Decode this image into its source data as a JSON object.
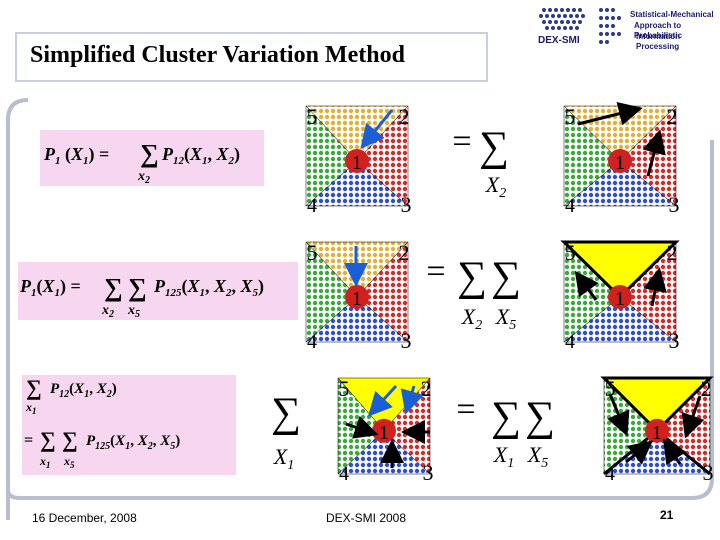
{
  "slide": {
    "title": "Simplified Cluster Variation Method",
    "footer_date": "16 December, 2008",
    "footer_center": "DEX-SMI 2008",
    "page_number": "21"
  },
  "logos": {
    "left_text": "DEX-SMI",
    "right_lines": [
      "Statistical-Mechanical",
      "Approach to Probabilistic",
      "Information Processing"
    ]
  },
  "colors": {
    "frame": "#b8bdd0",
    "pink_box": "#f7d7ef",
    "node_red": "#d02020",
    "highlight_yellow": "#ffff00",
    "arrow_blue": "#1a5fd6"
  },
  "formulas": [
    {
      "lhs": "P",
      "lhs_sub": "1",
      "args": "(X",
      "args_sub": "1",
      "rhs": ") = ",
      "sum_subs": [
        "X2"
      ],
      "term": "P",
      "term_sub": "12",
      "term_args": "(X1, X2)"
    },
    {
      "lhs": "P",
      "lhs_sub": "1",
      "args": "(X",
      "args_sub": "1",
      "rhs": ") = ",
      "sum_subs": [
        "X2",
        "X5"
      ],
      "term": "P",
      "term_sub": "125",
      "term_args": "(X1, X2, X5)"
    },
    {
      "line1_sum": "x1",
      "line1_term": "P12(X1, X2)",
      "line2_sums": [
        "x1",
        "x5"
      ],
      "line2_term": "P125(X1, X2, X5)"
    }
  ],
  "diagram_rows": [
    {
      "eq": "=",
      "sum_vars": [
        "X2"
      ]
    },
    {
      "eq": "=",
      "sum_vars": [
        "X2",
        "X5"
      ]
    },
    {
      "eq": "=",
      "sum_vars": [
        "X1",
        "X5"
      ],
      "left_sum_var": "X1"
    }
  ],
  "node_labels": {
    "n1": "1",
    "n2": "2",
    "n3": "3",
    "n4": "4",
    "n5": "5"
  }
}
